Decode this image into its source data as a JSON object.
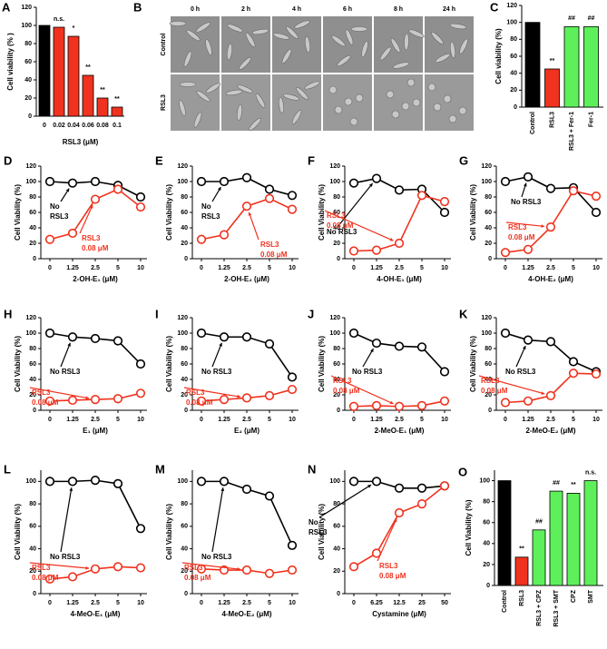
{
  "chart_data": [
    {
      "panel": "A",
      "type": "bar",
      "y_label": "Cell viability (% )",
      "x_label": "RSL3 (μM)",
      "categories": [
        "0",
        "0.02",
        "0.04",
        "0.06",
        "0.08",
        "0.1"
      ],
      "values": [
        100,
        98,
        88,
        45,
        20,
        10
      ],
      "colors": [
        "#000000",
        "#f0321e",
        "#f0321e",
        "#f0321e",
        "#f0321e",
        "#f0321e"
      ],
      "significance": [
        null,
        "n.s.",
        "*",
        "**",
        "**",
        "**"
      ],
      "ylim": [
        0,
        120
      ],
      "yticks": [
        0,
        20,
        40,
        60,
        80,
        100,
        120
      ]
    },
    {
      "panel": "B",
      "type": "image-grid",
      "columns": [
        "0 h",
        "2 h",
        "4 h",
        "6 h",
        "8 h",
        "24 h"
      ],
      "rows": [
        "Control",
        "RSL3"
      ]
    },
    {
      "panel": "C",
      "type": "bar",
      "y_label": "Cell viability (%)",
      "categories": [
        "Control",
        "RSL3",
        "RSL3 + Fer-1",
        "Fer-1"
      ],
      "values": [
        100,
        45,
        95,
        95
      ],
      "colors": [
        "#000000",
        "#f0321e",
        "#5ef05a",
        "#5ef05a"
      ],
      "significance": [
        null,
        "**",
        "##",
        "##"
      ],
      "ylim": [
        0,
        120
      ],
      "yticks": [
        0,
        20,
        40,
        60,
        80,
        100,
        120
      ]
    },
    {
      "panel": "D",
      "type": "line",
      "x_label": "2-OH-E₁ (μM)",
      "y_label": "Cell Viability (%)",
      "categories": [
        "0",
        "1.25",
        "2.5",
        "5",
        "10"
      ],
      "ylim": [
        0,
        120
      ],
      "yticks": [
        0,
        20,
        40,
        60,
        80,
        100,
        120
      ],
      "series": [
        {
          "label": [
            "No",
            "RSL3"
          ],
          "color": "#000000",
          "values": [
            100,
            98,
            100,
            95,
            80
          ]
        },
        {
          "label": [
            "RSL3",
            "0.08 μM"
          ],
          "color": "#f0321e",
          "values": [
            25,
            33,
            77,
            90,
            67
          ]
        }
      ]
    },
    {
      "panel": "E",
      "type": "line",
      "x_label": "2-OH-E₂ (μM)",
      "y_label": "Cell Viability (%)",
      "categories": [
        "0",
        "1.25",
        "2.5",
        "5",
        "10"
      ],
      "ylim": [
        0,
        120
      ],
      "yticks": [
        0,
        20,
        40,
        60,
        80,
        100,
        120
      ],
      "series": [
        {
          "label": [
            "No",
            "RSL3"
          ],
          "color": "#000000",
          "values": [
            100,
            100,
            105,
            90,
            82
          ]
        },
        {
          "label": [
            "RSL3",
            "0.08 μM"
          ],
          "color": "#f0321e",
          "values": [
            25,
            31,
            68,
            78,
            64
          ]
        }
      ]
    },
    {
      "panel": "F",
      "type": "line",
      "x_label": "4-OH-E₁ (μM)",
      "y_label": "Cell Viability (%)",
      "categories": [
        "0",
        "1.25",
        "2.5",
        "5",
        "10"
      ],
      "ylim": [
        0,
        120
      ],
      "yticks": [
        0,
        20,
        40,
        60,
        80,
        100,
        120
      ],
      "series": [
        {
          "label": [
            "No RSL3"
          ],
          "color": "#000000",
          "values": [
            98,
            104,
            89,
            90,
            60
          ]
        },
        {
          "label": [
            "RSL3",
            "0.08 μM"
          ],
          "color": "#f0321e",
          "values": [
            10,
            11,
            20,
            82,
            74
          ]
        }
      ]
    },
    {
      "panel": "G",
      "type": "line",
      "x_label": "4-OH-E₂ (μM)",
      "y_label": "Cell Viability (%)",
      "categories": [
        "0",
        "1.25",
        "2.5",
        "5",
        "10"
      ],
      "ylim": [
        0,
        120
      ],
      "yticks": [
        0,
        20,
        40,
        60,
        80,
        100,
        120
      ],
      "series": [
        {
          "label": [
            "No RSL3"
          ],
          "color": "#000000",
          "values": [
            100,
            106,
            91,
            92,
            60
          ]
        },
        {
          "label": [
            "RSL3",
            "0.08 μM"
          ],
          "color": "#f0321e",
          "values": [
            8,
            12,
            41,
            88,
            81
          ]
        }
      ]
    },
    {
      "panel": "H",
      "type": "line",
      "x_label": "E₁ (μM)",
      "y_label": "Cell Viability (%)",
      "categories": [
        "0",
        "1.25",
        "2.5",
        "5",
        "10"
      ],
      "ylim": [
        0,
        120
      ],
      "yticks": [
        0,
        20,
        40,
        60,
        80,
        100,
        120
      ],
      "series": [
        {
          "label": [
            "No RSL3"
          ],
          "color": "#000000",
          "values": [
            100,
            95,
            93,
            90,
            60
          ]
        },
        {
          "label": [
            "RSL3",
            "0.08 μM"
          ],
          "color": "#f0321e",
          "values": [
            12,
            13,
            14,
            15,
            22
          ]
        }
      ]
    },
    {
      "panel": "I",
      "type": "line",
      "x_label": "E₂ (μM)",
      "y_label": "Cell Viability (%)",
      "categories": [
        "0",
        "1.25",
        "2.5",
        "5",
        "10"
      ],
      "ylim": [
        0,
        120
      ],
      "yticks": [
        0,
        20,
        40,
        60,
        80,
        100,
        120
      ],
      "series": [
        {
          "label": [
            "No RSL3"
          ],
          "color": "#000000",
          "values": [
            100,
            95,
            95,
            86,
            43
          ]
        },
        {
          "label": [
            "RSL3",
            "0.08 μM"
          ],
          "color": "#f0321e",
          "values": [
            12,
            14,
            16,
            19,
            27
          ]
        }
      ]
    },
    {
      "panel": "J",
      "type": "line",
      "x_label": "2-MeO-E₁ (μM)",
      "y_label": "Cell Viability (%)",
      "categories": [
        "0",
        "1.25",
        "2.5",
        "5",
        "10"
      ],
      "ylim": [
        0,
        120
      ],
      "yticks": [
        0,
        20,
        40,
        60,
        80,
        100,
        120
      ],
      "series": [
        {
          "label": [
            "No RSL3"
          ],
          "color": "#000000",
          "values": [
            100,
            87,
            83,
            82,
            50
          ]
        },
        {
          "label": [
            "RSL3",
            "0.08 μM"
          ],
          "color": "#f0321e",
          "values": [
            5,
            6,
            5,
            6,
            12
          ]
        }
      ]
    },
    {
      "panel": "K",
      "type": "line",
      "x_label": "2-MeO-E₂ (μM)",
      "y_label": "Cell Viability (%)",
      "categories": [
        "0",
        "1.25",
        "2.5",
        "5",
        "10"
      ],
      "ylim": [
        0,
        120
      ],
      "yticks": [
        0,
        20,
        40,
        60,
        80,
        100,
        120
      ],
      "series": [
        {
          "label": [
            "No RSL3"
          ],
          "color": "#000000",
          "values": [
            100,
            91,
            89,
            63,
            50
          ]
        },
        {
          "label": [
            "RSL3",
            "0.08 μM"
          ],
          "color": "#f0321e",
          "values": [
            10,
            12,
            19,
            48,
            47
          ]
        }
      ]
    },
    {
      "panel": "L",
      "type": "line",
      "x_label": "4-MeO-E₁ (μM)",
      "y_label": "Cell Viability (%)",
      "categories": [
        "0",
        "1.25",
        "2.5",
        "5",
        "10"
      ],
      "ylim": [
        0,
        110
      ],
      "yticks": [
        0,
        20,
        40,
        60,
        80,
        100
      ],
      "series": [
        {
          "label": [
            "No RSL3"
          ],
          "color": "#000000",
          "values": [
            100,
            100,
            101,
            98,
            58
          ]
        },
        {
          "label": [
            "RSL3",
            "0.08 μM"
          ],
          "color": "#f0321e",
          "values": [
            13,
            15,
            22,
            24,
            23
          ]
        }
      ]
    },
    {
      "panel": "M",
      "type": "line",
      "x_label": "4-MeO-E₂ (μM)",
      "y_label": "Cell Viability (%)",
      "categories": [
        "0",
        "1.25",
        "2.5",
        "5",
        "10"
      ],
      "ylim": [
        0,
        110
      ],
      "yticks": [
        0,
        20,
        40,
        60,
        80,
        100
      ],
      "series": [
        {
          "label": [
            "No RSL3"
          ],
          "color": "#000000",
          "values": [
            100,
            100,
            93,
            87,
            43
          ]
        },
        {
          "label": [
            "RSL3",
            "0.08 μM"
          ],
          "color": "#f0321e",
          "values": [
            22,
            21,
            21,
            18,
            21
          ]
        }
      ]
    },
    {
      "panel": "N",
      "type": "line",
      "x_label": "Cystamine (μM)",
      "y_label": "Cell Viability (%)",
      "categories": [
        "0",
        "6.25",
        "12.5",
        "25",
        "50"
      ],
      "ylim": [
        0,
        110
      ],
      "yticks": [
        0,
        20,
        40,
        60,
        80,
        100
      ],
      "series": [
        {
          "label": [
            "No",
            "RSL3"
          ],
          "color": "#000000",
          "values": [
            100,
            100,
            94,
            94,
            96
          ]
        },
        {
          "label": [
            "RSL3",
            "0.08 μM"
          ],
          "color": "#f0321e",
          "values": [
            24,
            36,
            72,
            80,
            96
          ]
        }
      ]
    },
    {
      "panel": "O",
      "type": "bar",
      "y_label": "Cell Viability (%)",
      "categories": [
        "Control",
        "RSL3",
        "RSL3 + CPZ",
        "RSL3 + SMT",
        "CPZ",
        "SMT"
      ],
      "values": [
        100,
        27,
        53,
        90,
        88,
        100
      ],
      "colors": [
        "#000000",
        "#f0321e",
        "#5ef05a",
        "#5ef05a",
        "#5ef05a",
        "#5ef05a"
      ],
      "significance": [
        null,
        "**",
        "##",
        "##",
        "**",
        "n.s."
      ],
      "ylim": [
        0,
        110
      ],
      "yticks": [
        0,
        20,
        40,
        60,
        80,
        100
      ]
    }
  ]
}
